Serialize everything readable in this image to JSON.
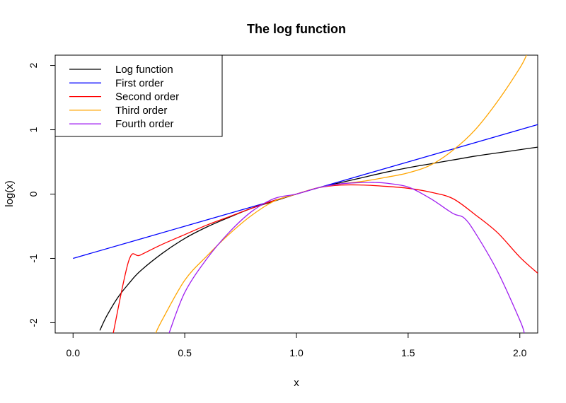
{
  "chart_data": {
    "type": "line",
    "title": "The log function",
    "xlabel": "x",
    "ylabel": "log(x)",
    "xlim": [
      -0.08,
      2.08
    ],
    "ylim": [
      -2.16,
      2.16
    ],
    "xticks": [
      0.0,
      0.5,
      1.0,
      1.5,
      2.0
    ],
    "xtick_labels": [
      "0.0",
      "0.5",
      "1.0",
      "1.5",
      "2.0"
    ],
    "yticks": [
      -2,
      -1,
      0,
      1,
      2
    ],
    "ytick_labels": [
      "-2",
      "-1",
      "0",
      "1",
      "2"
    ],
    "grid": false,
    "legend_position": "top-left",
    "series": [
      {
        "name": "Log function",
        "color": "#000000",
        "x": [
          0.12,
          0.15,
          0.2,
          0.25,
          0.3,
          0.4,
          0.5,
          0.6,
          0.7,
          0.8,
          0.9,
          1.0,
          1.1,
          1.2,
          1.3,
          1.4,
          1.5,
          1.6,
          1.7,
          1.8,
          1.9,
          2.0,
          2.08
        ],
        "y": [
          -2.12,
          -1.9,
          -1.61,
          -1.39,
          -1.2,
          -0.92,
          -0.69,
          -0.51,
          -0.36,
          -0.22,
          -0.11,
          0.0,
          0.1,
          0.18,
          0.26,
          0.34,
          0.41,
          0.47,
          0.53,
          0.59,
          0.64,
          0.69,
          0.73
        ]
      },
      {
        "name": "First order",
        "color": "#0000ff",
        "x": [
          0.0,
          0.5,
          1.0,
          1.5,
          2.0,
          2.08
        ],
        "y": [
          -1.0,
          -0.5,
          0.0,
          0.5,
          1.0,
          1.08
        ]
      },
      {
        "name": "Second order",
        "color": "#ff0000",
        "x": [
          0.18,
          0.25,
          0.3,
          0.4,
          0.5,
          0.6,
          0.7,
          0.8,
          0.9,
          1.0,
          1.1,
          1.2,
          1.3,
          1.4,
          1.5,
          1.6,
          1.7,
          1.8,
          1.9,
          2.0,
          2.08
        ],
        "y": [
          -2.16,
          -1.03,
          -0.95,
          -0.78,
          -0.63,
          -0.48,
          -0.35,
          -0.22,
          -0.1,
          0.0,
          0.1,
          0.14,
          0.14,
          0.12,
          0.09,
          0.03,
          -0.07,
          -0.32,
          -0.6,
          -0.98,
          -1.23
        ]
      },
      {
        "name": "Third order",
        "color": "#ffa500",
        "x": [
          0.37,
          0.4,
          0.5,
          0.6,
          0.7,
          0.8,
          0.9,
          1.0,
          1.1,
          1.2,
          1.3,
          1.4,
          1.5,
          1.6,
          1.7,
          1.8,
          1.9,
          2.0,
          2.03
        ],
        "y": [
          -2.16,
          -1.95,
          -1.34,
          -0.96,
          -0.62,
          -0.33,
          -0.11,
          0.0,
          0.1,
          0.16,
          0.2,
          0.26,
          0.33,
          0.45,
          0.68,
          1.0,
          1.44,
          1.96,
          2.16
        ]
      },
      {
        "name": "Fourth order",
        "color": "#a020f0",
        "x": [
          0.43,
          0.5,
          0.6,
          0.7,
          0.8,
          0.9,
          1.0,
          1.1,
          1.2,
          1.3,
          1.35,
          1.4,
          1.5,
          1.6,
          1.7,
          1.75,
          1.8,
          1.9,
          2.0,
          2.02
        ],
        "y": [
          -2.16,
          -1.53,
          -1.0,
          -0.59,
          -0.27,
          -0.07,
          0.0,
          0.1,
          0.16,
          0.18,
          0.18,
          0.17,
          0.11,
          -0.07,
          -0.3,
          -0.37,
          -0.6,
          -1.2,
          -1.96,
          -2.16
        ]
      }
    ]
  }
}
